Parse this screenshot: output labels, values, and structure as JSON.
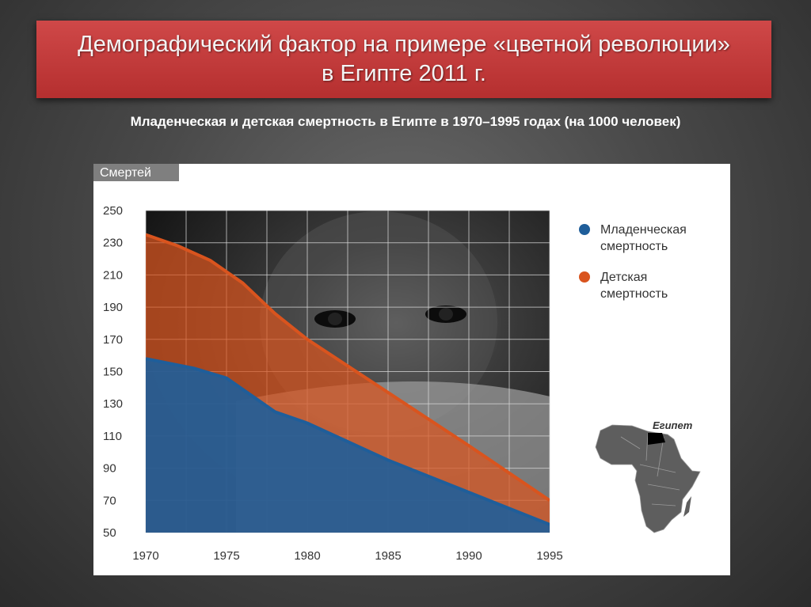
{
  "title": {
    "line1": "Демографический фактор на примере «цветной революции»",
    "line2": "в Египте 2011 г."
  },
  "subtitle": "Младенческая и детская смертность в Египте в 1970–1995 годах (на 1000 человек)",
  "chart_data": {
    "type": "area",
    "ylabel": "Смертей",
    "ylim": [
      50,
      250
    ],
    "yticks": [
      50,
      70,
      90,
      110,
      130,
      150,
      170,
      190,
      210,
      230,
      250
    ],
    "xlim": [
      1970,
      1995
    ],
    "xticks": [
      1970,
      1975,
      1980,
      1985,
      1990,
      1995
    ],
    "grid": true,
    "legend_placement": "right",
    "series": [
      {
        "name": "Младенческая смертность",
        "color": "#1f5e9a",
        "points": [
          [
            1970,
            158
          ],
          [
            1973,
            152
          ],
          [
            1975,
            146
          ],
          [
            1978,
            125
          ],
          [
            1980,
            118
          ],
          [
            1985,
            95
          ],
          [
            1990,
            75
          ],
          [
            1995,
            55
          ]
        ]
      },
      {
        "name": "Детская смертность",
        "color": "#d9541e",
        "points": [
          [
            1970,
            235
          ],
          [
            1972,
            228
          ],
          [
            1974,
            219
          ],
          [
            1976,
            205
          ],
          [
            1978,
            186
          ],
          [
            1980,
            170
          ],
          [
            1985,
            137
          ],
          [
            1990,
            104
          ],
          [
            1995,
            70
          ]
        ]
      }
    ]
  },
  "map": {
    "label": "Египет",
    "icon": "africa-map-icon"
  }
}
